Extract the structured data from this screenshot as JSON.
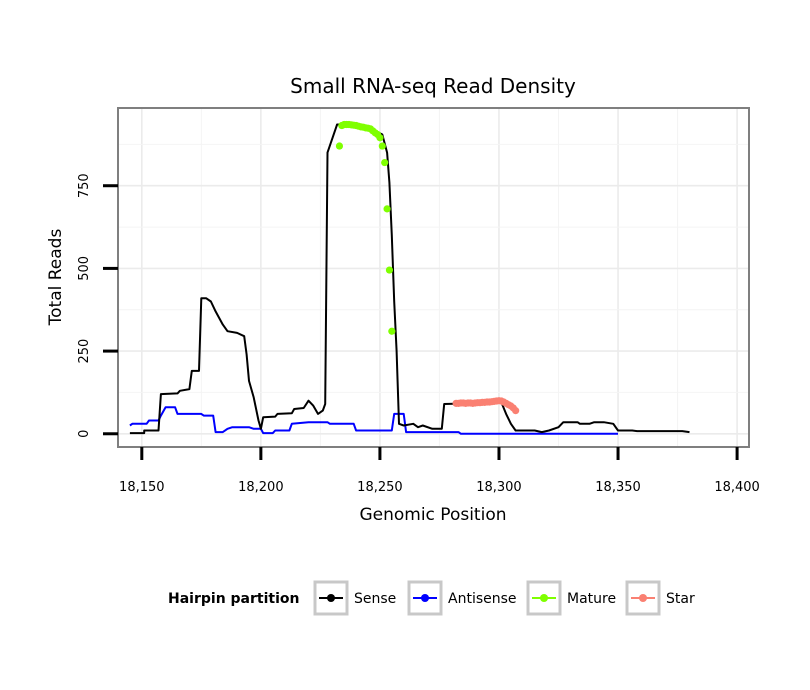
{
  "chart_data": {
    "type": "line",
    "title": "Small RNA-seq Read Density",
    "xlabel": "Genomic Position",
    "ylabel": "Total Reads",
    "xlim": [
      18140,
      18405
    ],
    "ylim": [
      -40,
      985
    ],
    "x_ticks": [
      18150,
      18200,
      18250,
      18300,
      18350,
      18400
    ],
    "x_tick_labels": [
      "18,150",
      "18,200",
      "18,250",
      "18,300",
      "18,350",
      "18,400"
    ],
    "y_ticks": [
      0,
      250,
      500,
      750
    ],
    "y_tick_labels": [
      "0",
      "250",
      "500",
      "750"
    ],
    "grid": true,
    "legend": {
      "title": "Hairpin partition",
      "position": "bottom",
      "entries": [
        {
          "name": "Sense",
          "color": "#000000"
        },
        {
          "name": "Antisense",
          "color": "#0000ff"
        },
        {
          "name": "Mature",
          "color": "#7fff00"
        },
        {
          "name": "Star",
          "color": "#fa8072"
        }
      ]
    },
    "series": [
      {
        "name": "Sense",
        "color": "#000000",
        "points": [
          [
            18145,
            2
          ],
          [
            18151,
            2
          ],
          [
            18151,
            10
          ],
          [
            18157,
            10
          ],
          [
            18158,
            120
          ],
          [
            18165,
            122
          ],
          [
            18166,
            130
          ],
          [
            18170,
            135
          ],
          [
            18171,
            190
          ],
          [
            18174,
            190
          ],
          [
            18175,
            410
          ],
          [
            18177,
            410
          ],
          [
            18179,
            400
          ],
          [
            18181,
            370
          ],
          [
            18184,
            330
          ],
          [
            18186,
            310
          ],
          [
            18190,
            305
          ],
          [
            18193,
            295
          ],
          [
            18194,
            240
          ],
          [
            18195,
            160
          ],
          [
            18197,
            110
          ],
          [
            18199,
            40
          ],
          [
            18200,
            15
          ],
          [
            18201,
            50
          ],
          [
            18206,
            52
          ],
          [
            18207,
            60
          ],
          [
            18213,
            62
          ],
          [
            18214,
            75
          ],
          [
            18218,
            78
          ],
          [
            18220,
            100
          ],
          [
            18222,
            85
          ],
          [
            18224,
            60
          ],
          [
            18226,
            70
          ],
          [
            18227,
            90
          ],
          [
            18228,
            850
          ],
          [
            18232,
            935
          ],
          [
            18237,
            935
          ],
          [
            18242,
            930
          ],
          [
            18247,
            920
          ],
          [
            18251,
            905
          ],
          [
            18253,
            850
          ],
          [
            18254,
            760
          ],
          [
            18255,
            600
          ],
          [
            18256,
            400
          ],
          [
            18257,
            250
          ],
          [
            18258,
            30
          ],
          [
            18260,
            25
          ],
          [
            18264,
            30
          ],
          [
            18266,
            20
          ],
          [
            18268,
            25
          ],
          [
            18272,
            15
          ],
          [
            18276,
            15
          ],
          [
            18277,
            90
          ],
          [
            18290,
            92
          ],
          [
            18292,
            95
          ],
          [
            18296,
            100
          ],
          [
            18301,
            95
          ],
          [
            18303,
            60
          ],
          [
            18305,
            30
          ],
          [
            18307,
            10
          ],
          [
            18315,
            10
          ],
          [
            18318,
            5
          ],
          [
            18321,
            10
          ],
          [
            18325,
            20
          ],
          [
            18327,
            35
          ],
          [
            18333,
            35
          ],
          [
            18334,
            30
          ],
          [
            18338,
            30
          ],
          [
            18340,
            35
          ],
          [
            18344,
            35
          ],
          [
            18348,
            30
          ],
          [
            18350,
            10
          ],
          [
            18356,
            10
          ],
          [
            18358,
            8
          ],
          [
            18377,
            8
          ],
          [
            18380,
            5
          ]
        ]
      },
      {
        "name": "Antisense",
        "color": "#0000ff",
        "points": [
          [
            18145,
            25
          ],
          [
            18146,
            30
          ],
          [
            18152,
            30
          ],
          [
            18153,
            40
          ],
          [
            18157,
            40
          ],
          [
            18158,
            55
          ],
          [
            18160,
            80
          ],
          [
            18164,
            80
          ],
          [
            18165,
            60
          ],
          [
            18175,
            60
          ],
          [
            18176,
            55
          ],
          [
            18180,
            55
          ],
          [
            18181,
            5
          ],
          [
            18184,
            5
          ],
          [
            18186,
            15
          ],
          [
            18188,
            20
          ],
          [
            18195,
            20
          ],
          [
            18197,
            15
          ],
          [
            18200,
            15
          ],
          [
            18201,
            2
          ],
          [
            18205,
            2
          ],
          [
            18206,
            10
          ],
          [
            18212,
            10
          ],
          [
            18213,
            30
          ],
          [
            18220,
            35
          ],
          [
            18228,
            35
          ],
          [
            18229,
            30
          ],
          [
            18239,
            30
          ],
          [
            18240,
            10
          ],
          [
            18255,
            10
          ],
          [
            18256,
            60
          ],
          [
            18260,
            60
          ],
          [
            18261,
            5
          ],
          [
            18283,
            5
          ],
          [
            18284,
            0
          ],
          [
            18350,
            0
          ]
        ]
      },
      {
        "name": "Mature",
        "color": "#7fff00",
        "points": [
          [
            18233,
            870
          ],
          [
            18234,
            932
          ],
          [
            18235,
            935
          ],
          [
            18236,
            935
          ],
          [
            18237,
            935
          ],
          [
            18238,
            934
          ],
          [
            18239,
            933
          ],
          [
            18240,
            932
          ],
          [
            18241,
            930
          ],
          [
            18242,
            928
          ],
          [
            18243,
            927
          ],
          [
            18244,
            925
          ],
          [
            18245,
            924
          ],
          [
            18246,
            922
          ],
          [
            18247,
            916
          ],
          [
            18248,
            910
          ],
          [
            18249,
            905
          ],
          [
            18250,
            895
          ],
          [
            18251,
            870
          ],
          [
            18252,
            820
          ],
          [
            18253,
            680
          ],
          [
            18254,
            495
          ],
          [
            18255,
            310
          ]
        ]
      },
      {
        "name": "Star",
        "color": "#fa8072",
        "points": [
          [
            18282,
            92
          ],
          [
            18283,
            92
          ],
          [
            18284,
            93
          ],
          [
            18285,
            93
          ],
          [
            18286,
            92
          ],
          [
            18287,
            93
          ],
          [
            18288,
            93
          ],
          [
            18289,
            92
          ],
          [
            18290,
            93
          ],
          [
            18291,
            94
          ],
          [
            18292,
            94
          ],
          [
            18293,
            95
          ],
          [
            18294,
            95
          ],
          [
            18295,
            96
          ],
          [
            18296,
            96
          ],
          [
            18297,
            97
          ],
          [
            18298,
            98
          ],
          [
            18299,
            99
          ],
          [
            18300,
            100
          ],
          [
            18301,
            99
          ],
          [
            18302,
            96
          ],
          [
            18303,
            92
          ],
          [
            18304,
            88
          ],
          [
            18305,
            84
          ],
          [
            18306,
            78
          ],
          [
            18307,
            70
          ]
        ]
      }
    ]
  }
}
